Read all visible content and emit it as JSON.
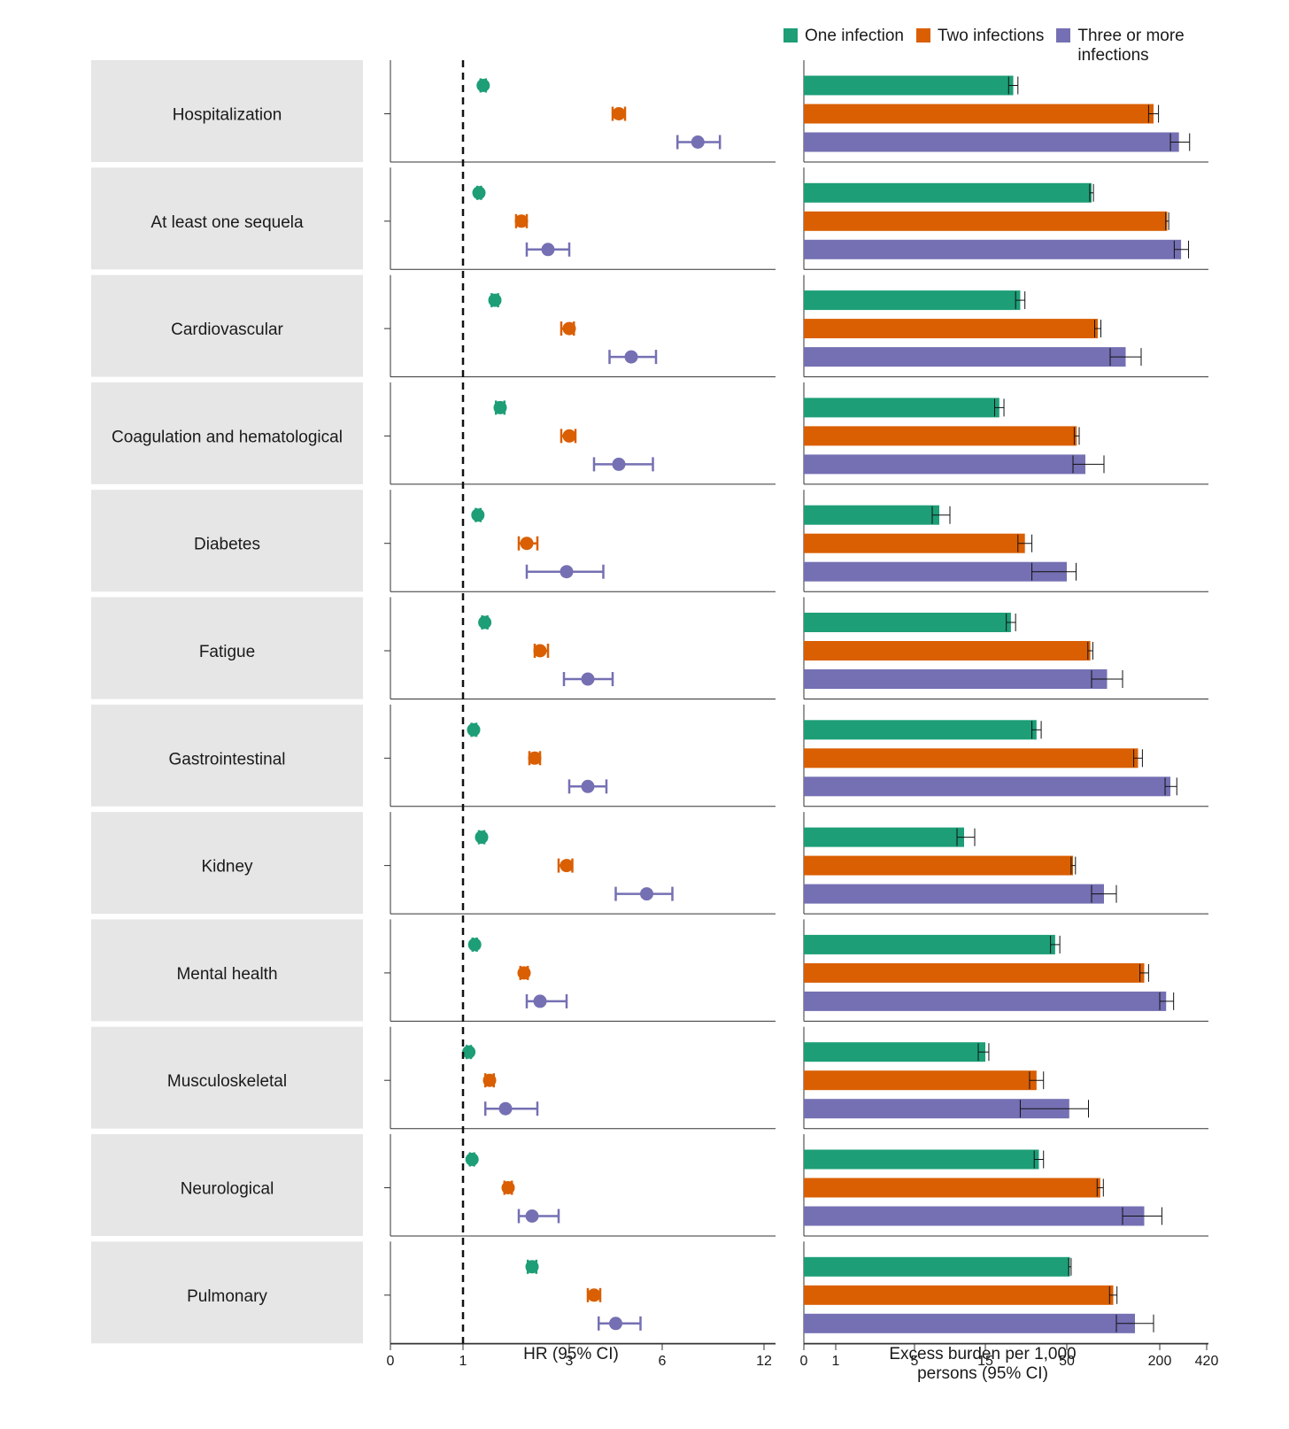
{
  "legend": [
    {
      "label": "One infection",
      "color": "#1d9e77"
    },
    {
      "label": "Two infections",
      "color": "#d95f02"
    },
    {
      "label": "Three or more infections",
      "color": "#7570b3"
    }
  ],
  "axes": {
    "hr_title": "HR (95% CI)",
    "burden_title_line1": "Excess burden per 1,000",
    "burden_title_line2": "persons (95% CI)"
  },
  "chart_data": {
    "type": "forest-and-bar",
    "series": [
      "One infection",
      "Two infections",
      "Three or more infections"
    ],
    "hr_axis": {
      "ticks": [
        0,
        1,
        3,
        6,
        12
      ],
      "tick_labels": [
        "0",
        "1",
        "3",
        "6",
        "12"
      ],
      "reference_line": 1,
      "label": "HR (95% CI)"
    },
    "burden_axis": {
      "ticks": [
        0,
        1,
        5,
        15,
        50,
        200,
        420
      ],
      "tick_labels": [
        "0",
        "1",
        "5",
        "15",
        "50",
        "200",
        "420"
      ],
      "label": "Excess burden per 1,000 persons (95% CI)"
    },
    "outcomes": [
      {
        "name": "Hospitalization",
        "hr": [
          [
            1.38,
            1.33,
            1.43
          ],
          [
            4.6,
            4.4,
            4.8
          ],
          [
            8.1,
            6.9,
            9.4
          ]
        ],
        "burden": [
          [
            27,
            25,
            29
          ],
          [
            190,
            182,
            198
          ],
          [
            290,
            250,
            340
          ]
        ]
      },
      {
        "name": "At least one sequela",
        "hr": [
          [
            1.3,
            1.27,
            1.34
          ],
          [
            2.1,
            2.0,
            2.2
          ],
          [
            2.6,
            2.2,
            3.0
          ]
        ],
        "burden": [
          [
            90,
            87,
            93
          ],
          [
            235,
            228,
            242
          ],
          [
            300,
            268,
            335
          ]
        ]
      },
      {
        "name": "Cardiovascular",
        "hr": [
          [
            1.6,
            1.54,
            1.66
          ],
          [
            3.0,
            2.85,
            3.15
          ],
          [
            5.0,
            4.3,
            5.8
          ]
        ],
        "burden": [
          [
            30,
            28,
            32
          ],
          [
            100,
            95,
            105
          ],
          [
            145,
            120,
            170
          ]
        ]
      },
      {
        "name": "Coagulation and hematological",
        "hr": [
          [
            1.7,
            1.62,
            1.78
          ],
          [
            3.0,
            2.85,
            3.2
          ],
          [
            4.6,
            3.8,
            5.7
          ]
        ],
        "burden": [
          [
            21,
            19,
            23
          ],
          [
            66,
            62,
            70
          ],
          [
            80,
            60,
            110
          ]
        ]
      },
      {
        "name": "Diabetes",
        "hr": [
          [
            1.28,
            1.24,
            1.33
          ],
          [
            2.2,
            2.05,
            2.4
          ],
          [
            2.95,
            2.2,
            4.1
          ]
        ],
        "burden": [
          [
            8.5,
            7.5,
            10
          ],
          [
            32,
            29,
            35
          ],
          [
            50,
            35,
            65
          ]
        ]
      },
      {
        "name": "Fatigue",
        "hr": [
          [
            1.41,
            1.36,
            1.46
          ],
          [
            2.45,
            2.35,
            2.6
          ],
          [
            3.6,
            2.9,
            4.4
          ]
        ],
        "burden": [
          [
            26,
            24,
            28
          ],
          [
            88,
            84,
            92
          ],
          [
            115,
            90,
            140
          ]
        ]
      },
      {
        "name": "Gastrointestinal",
        "hr": [
          [
            1.2,
            1.16,
            1.25
          ],
          [
            2.35,
            2.25,
            2.45
          ],
          [
            3.6,
            3.0,
            4.2
          ]
        ],
        "burden": [
          [
            37,
            35,
            39
          ],
          [
            165,
            158,
            172
          ],
          [
            250,
            225,
            280
          ]
        ]
      },
      {
        "name": "Kidney",
        "hr": [
          [
            1.35,
            1.3,
            1.4
          ],
          [
            2.95,
            2.8,
            3.1
          ],
          [
            5.5,
            4.5,
            6.6
          ]
        ],
        "burden": [
          [
            12,
            11,
            13.5
          ],
          [
            60,
            57,
            64
          ],
          [
            110,
            90,
            130
          ]
        ]
      },
      {
        "name": "Mental health",
        "hr": [
          [
            1.22,
            1.18,
            1.26
          ],
          [
            2.15,
            2.08,
            2.22
          ],
          [
            2.45,
            2.2,
            2.95
          ]
        ],
        "burden": [
          [
            45,
            43,
            47
          ],
          [
            175,
            168,
            182
          ],
          [
            230,
            200,
            265
          ]
        ]
      },
      {
        "name": "Musculoskeletal",
        "hr": [
          [
            1.11,
            1.07,
            1.15
          ],
          [
            1.5,
            1.42,
            1.58
          ],
          [
            1.8,
            1.42,
            2.4
          ]
        ],
        "burden": [
          [
            15,
            14,
            16.5
          ],
          [
            37,
            34,
            40
          ],
          [
            54,
            30,
            85
          ]
        ]
      },
      {
        "name": "Neurological",
        "hr": [
          [
            1.17,
            1.13,
            1.21
          ],
          [
            1.85,
            1.78,
            1.92
          ],
          [
            2.3,
            2.05,
            2.8
          ]
        ],
        "burden": [
          [
            38,
            36,
            40
          ],
          [
            104,
            99,
            109
          ],
          [
            175,
            140,
            210
          ]
        ]
      },
      {
        "name": "Pulmonary",
        "hr": [
          [
            2.3,
            2.22,
            2.38
          ],
          [
            3.8,
            3.6,
            4.0
          ],
          [
            4.5,
            3.95,
            5.3
          ]
        ],
        "burden": [
          [
            55,
            53,
            57
          ],
          [
            125,
            119,
            131
          ],
          [
            160,
            130,
            190
          ]
        ]
      }
    ]
  }
}
